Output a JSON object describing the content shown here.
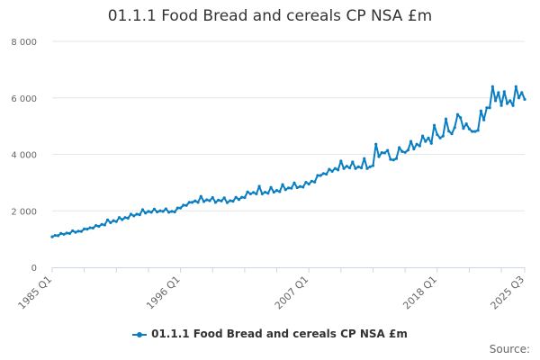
{
  "chart_data": {
    "type": "line",
    "title": "01.1.1 Food Bread and cereals CP NSA £m",
    "xlabel": "",
    "ylabel": "",
    "x_start": "1985 Q1",
    "x_end": "2025 Q3",
    "x_tick_labels": [
      "1985 Q1",
      "1996 Q1",
      "2007 Q1",
      "2018 Q1",
      "2025 Q3"
    ],
    "y_ticks": [
      0,
      2000,
      4000,
      6000,
      8000
    ],
    "y_tick_labels": [
      "0",
      "2 000",
      "4 000",
      "6 000",
      "8 000"
    ],
    "ylim": [
      0,
      8000
    ],
    "grid": "horizontal",
    "legend_position": "bottom",
    "series": [
      {
        "name": "01.1.1 Food Bread and cereals CP NSA £m",
        "color": "#0a7ec2",
        "values": [
          1080,
          1130,
          1120,
          1200,
          1170,
          1210,
          1200,
          1290,
          1240,
          1280,
          1270,
          1360,
          1350,
          1400,
          1390,
          1480,
          1450,
          1520,
          1500,
          1680,
          1580,
          1650,
          1620,
          1760,
          1690,
          1760,
          1740,
          1880,
          1820,
          1880,
          1860,
          2040,
          1920,
          1980,
          1950,
          2060,
          1960,
          2000,
          1980,
          2070,
          1950,
          1980,
          1960,
          2100,
          2100,
          2200,
          2190,
          2300,
          2300,
          2350,
          2300,
          2510,
          2330,
          2390,
          2360,
          2470,
          2300,
          2380,
          2350,
          2460,
          2290,
          2360,
          2340,
          2480,
          2400,
          2480,
          2470,
          2670,
          2600,
          2650,
          2600,
          2870,
          2600,
          2660,
          2620,
          2830,
          2660,
          2720,
          2680,
          2930,
          2750,
          2810,
          2800,
          2990,
          2820,
          2860,
          2840,
          3010,
          2950,
          3050,
          3020,
          3250,
          3250,
          3320,
          3300,
          3470,
          3400,
          3500,
          3450,
          3760,
          3500,
          3580,
          3520,
          3730,
          3500,
          3560,
          3520,
          3850,
          3500,
          3560,
          3600,
          4360,
          3920,
          4060,
          4050,
          4140,
          3820,
          3800,
          3850,
          4240,
          4100,
          4070,
          4150,
          4460,
          4190,
          4360,
          4300,
          4650,
          4460,
          4580,
          4390,
          5030,
          4700,
          4580,
          4650,
          5250,
          4820,
          4730,
          4950,
          5410,
          5300,
          4920,
          5080,
          4900,
          4810,
          4810,
          4850,
          5540,
          5220,
          5650,
          5650,
          6400,
          5900,
          6190,
          5730,
          6220,
          5800,
          5900,
          5730,
          6400,
          6000,
          6190,
          5950
        ]
      }
    ]
  },
  "source_label": "Source:"
}
